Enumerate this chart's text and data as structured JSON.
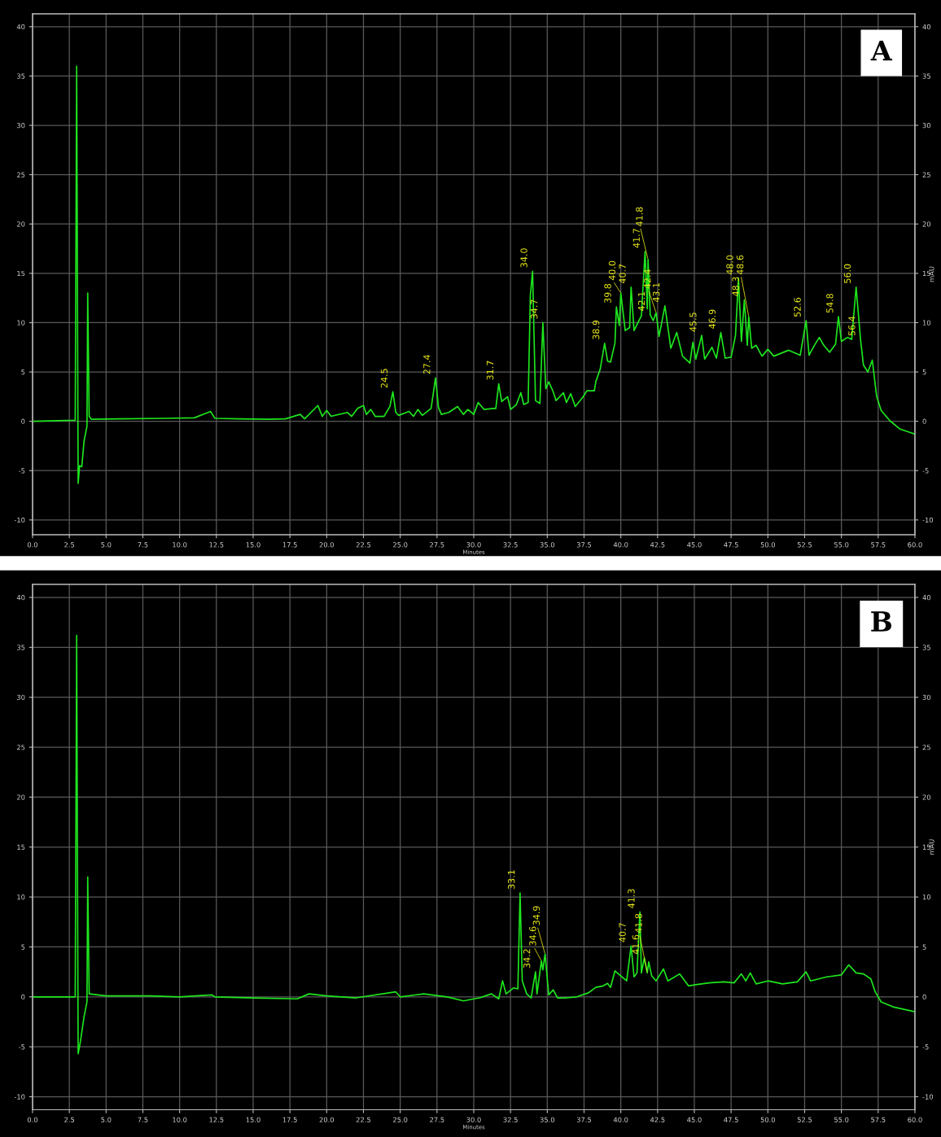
{
  "chart_data": [
    {
      "type": "line",
      "xlabel": "Minutes",
      "y2label": "mAU",
      "xlim": [
        0,
        60
      ],
      "xticks": [
        {
          "value": 0,
          "label": "0.0"
        },
        2.5,
        {
          "value": 5,
          "label": "5.0"
        },
        7.5,
        {
          "value": 10,
          "label": "10.0"
        },
        12.5,
        {
          "value": 15,
          "label": "15.0"
        },
        17.5,
        {
          "value": 20,
          "label": "20.0"
        },
        22.5,
        {
          "value": 25,
          "label": "25.0"
        },
        27.5,
        {
          "value": 30,
          "label": "30.0"
        },
        32.5,
        {
          "value": 35,
          "label": "35.0"
        },
        37.5,
        {
          "value": 40,
          "label": "40.0"
        },
        42.5,
        {
          "value": 45,
          "label": "45.0"
        },
        47.5,
        {
          "value": 50,
          "label": "50.0"
        },
        52.5,
        {
          "value": 55,
          "label": "55.0"
        },
        57.5,
        {
          "value": 60,
          "label": "60.0"
        }
      ],
      "ylim": [
        -11.5,
        41.3
      ],
      "yticks": [
        -10,
        -5,
        0,
        5,
        10,
        15,
        20,
        25,
        30,
        35,
        40
      ],
      "y2lim": [
        -11.5,
        41.3
      ],
      "y2ticks": [
        -10,
        -5,
        0,
        5,
        10,
        15,
        20,
        25,
        30,
        35,
        40
      ],
      "grid": true,
      "legend": false,
      "series": [
        {
          "color": "#1ee61e",
          "x": [
            0,
            2.9,
            3.0,
            3.1,
            3.2,
            3.35,
            3.5,
            3.7,
            3.75,
            3.85,
            4,
            6,
            9,
            11,
            12.1,
            12.4,
            14,
            16,
            17.2,
            18.2,
            18.5,
            19.4,
            19.7,
            20.0,
            20.3,
            21.4,
            21.7,
            22.1,
            22.5,
            22.7,
            23.0,
            23.3,
            23.9,
            24.3,
            24.5,
            24.7,
            24.9,
            25.6,
            25.9,
            26.2,
            26.5,
            27.1,
            27.4,
            27.6,
            27.8,
            28.3,
            28.9,
            29.3,
            29.6,
            30.0,
            30.3,
            30.7,
            31.3,
            31.5,
            31.7,
            31.9,
            32.3,
            32.5,
            32.9,
            33.2,
            33.4,
            33.7,
            33.85,
            34.0,
            34.2,
            34.5,
            34.7,
            34.9,
            35.1,
            35.4,
            35.6,
            36.1,
            36.3,
            36.6,
            36.9,
            37.4,
            37.7,
            38.2,
            38.3,
            38.6,
            38.9,
            39.1,
            39.3,
            39.6,
            39.7,
            39.9,
            40.0,
            40.3,
            40.6,
            40.7,
            40.9,
            41.4,
            41.65,
            41.8,
            41.85,
            42.0,
            42.2,
            42.4,
            42.6,
            43.0,
            43.4,
            43.8,
            44.2,
            44.7,
            44.9,
            45.1,
            45.5,
            45.7,
            46.2,
            46.5,
            46.8,
            47.1,
            47.5,
            47.8,
            48.0,
            48.2,
            48.4,
            48.6,
            48.7,
            48.9,
            49.2,
            49.6,
            50.0,
            50.4,
            51.4,
            52.2,
            52.6,
            52.8,
            53.2,
            53.5,
            53.8,
            54.2,
            54.6,
            54.8,
            55.0,
            55.4,
            55.7,
            56.0,
            56.3,
            56.5,
            56.8,
            57.1,
            57.4,
            57.7,
            58.3,
            59.0,
            60.0
          ],
          "values": [
            0,
            0.1,
            36,
            -6.3,
            -4.5,
            -4.6,
            -2,
            -0.5,
            13,
            0.5,
            0.2,
            0.25,
            0.3,
            0.35,
            1.0,
            0.3,
            0.25,
            0.2,
            0.25,
            0.7,
            0.25,
            1.6,
            0.5,
            1.1,
            0.5,
            0.9,
            0.5,
            1.3,
            1.6,
            0.7,
            1.2,
            0.5,
            0.5,
            1.5,
            3.0,
            0.9,
            0.6,
            1.0,
            0.5,
            1.2,
            0.6,
            1.3,
            4.4,
            1.4,
            0.7,
            0.9,
            1.5,
            0.7,
            1.2,
            0.7,
            1.9,
            1.2,
            1.3,
            1.3,
            3.8,
            2.0,
            2.5,
            1.2,
            1.7,
            2.9,
            1.7,
            1.9,
            12.8,
            15.2,
            2.1,
            1.8,
            10.0,
            3.3,
            4.0,
            3.0,
            2.1,
            2.9,
            1.9,
            2.8,
            1.5,
            2.4,
            3.1,
            3.1,
            4.0,
            5.3,
            7.9,
            6.1,
            6.0,
            7.9,
            11.6,
            9.7,
            13.0,
            9.2,
            9.5,
            13.6,
            9.2,
            10.7,
            17.2,
            11.4,
            16.4,
            10.8,
            10.2,
            11.0,
            8.6,
            11.7,
            7.4,
            9.0,
            6.6,
            5.9,
            8.0,
            6.3,
            8.7,
            6.3,
            7.5,
            6.4,
            9.0,
            6.4,
            6.5,
            8.7,
            14.5,
            8.1,
            12.3,
            7.7,
            10.6,
            7.4,
            7.7,
            6.6,
            7.3,
            6.6,
            7.2,
            6.7,
            10.2,
            6.7,
            7.8,
            8.5,
            7.7,
            7.0,
            7.8,
            10.6,
            8.1,
            8.5,
            8.3,
            13.6,
            8.3,
            5.7,
            5.0,
            6.2,
            2.5,
            1.1,
            0.05,
            -0.8,
            -1.3
          ]
        }
      ],
      "annotations": [
        "A",
        {
          "text": "24.5",
          "x": 24.5,
          "y": 3.0
        },
        {
          "text": "27.4",
          "x": 27.4,
          "y": 4.4
        },
        {
          "text": "31.7",
          "x": 31.7,
          "y": 3.8
        },
        {
          "text": "34.0",
          "x": 34.0,
          "y": 15.2
        },
        {
          "text": "34.7",
          "x": 34.7,
          "y": 10.0
        },
        {
          "text": "38.9",
          "x": 38.9,
          "y": 7.9
        },
        {
          "text": "39.8",
          "x": 39.7,
          "y": 11.6
        },
        {
          "text": "40.0",
          "x": 40.0,
          "y": 13.0
        },
        {
          "text": "40.7",
          "x": 40.7,
          "y": 13.6
        },
        {
          "text": "41.7",
          "x": 41.65,
          "y": 17.2
        },
        {
          "text": "41.8",
          "x": 41.85,
          "y": 16.4
        },
        {
          "text": "42.1",
          "x": 42.0,
          "y": 10.8
        },
        {
          "text": "42.4",
          "x": 42.4,
          "y": 11.0
        },
        {
          "text": "43.1",
          "x": 43.0,
          "y": 11.7
        },
        {
          "text": "45.5",
          "x": 45.5,
          "y": 8.7
        },
        {
          "text": "46.9",
          "x": 46.8,
          "y": 9.0
        },
        {
          "text": "48.0",
          "x": 48.0,
          "y": 14.5
        },
        {
          "text": "48.3",
          "x": 48.4,
          "y": 12.3
        },
        {
          "text": "48.6",
          "x": 48.7,
          "y": 10.6
        },
        {
          "text": "52.6",
          "x": 52.6,
          "y": 10.2
        },
        {
          "text": "54.8",
          "x": 54.8,
          "y": 10.6
        },
        {
          "text": "56.0",
          "x": 56.0,
          "y": 13.6
        },
        {
          "text": "56.4",
          "x": 56.3,
          "y": 8.3
        }
      ]
    },
    {
      "type": "line",
      "xlabel": "Minutes",
      "y2label": "mAU",
      "xlim": [
        0,
        60
      ],
      "xticks": [
        {
          "value": 0,
          "label": "0.0"
        },
        2.5,
        {
          "value": 5,
          "label": "5.0"
        },
        7.5,
        {
          "value": 10,
          "label": "10.0"
        },
        12.5,
        {
          "value": 15,
          "label": "15.0"
        },
        17.5,
        {
          "value": 20,
          "label": "20.0"
        },
        22.5,
        {
          "value": 25,
          "label": "25.0"
        },
        27.5,
        {
          "value": 30,
          "label": "30.0"
        },
        32.5,
        {
          "value": 35,
          "label": "35.0"
        },
        37.5,
        {
          "value": 40,
          "label": "40.0"
        },
        42.5,
        {
          "value": 45,
          "label": "45.0"
        },
        47.5,
        {
          "value": 50,
          "label": "50.0"
        },
        52.5,
        {
          "value": 55,
          "label": "55.0"
        },
        57.5,
        {
          "value": 60,
          "label": "60.0"
        }
      ],
      "ylim": [
        -11.3,
        41.3
      ],
      "yticks": [
        -10,
        -5,
        0,
        5,
        10,
        15,
        20,
        25,
        30,
        35,
        40
      ],
      "y2lim": [
        -11.3,
        41.3
      ],
      "y2ticks": [
        -10,
        -5,
        0,
        5,
        10,
        15,
        20,
        25,
        30,
        35,
        40
      ],
      "grid": true,
      "legend": false,
      "series": [
        {
          "color": "#1ee61e",
          "x": [
            0,
            2.9,
            3.0,
            3.1,
            3.25,
            3.5,
            3.7,
            3.75,
            3.85,
            5,
            8,
            10,
            12.2,
            12.4,
            15,
            18,
            18.8,
            20,
            22,
            24.7,
            25,
            26.6,
            28.2,
            29.3,
            30.4,
            31.2,
            31.7,
            31.96,
            32.2,
            32.7,
            33.0,
            33.15,
            33.3,
            33.6,
            33.9,
            34.2,
            34.3,
            34.6,
            34.7,
            34.85,
            35.1,
            35.4,
            35.7,
            36.3,
            37.0,
            37.8,
            38.3,
            38.8,
            39.1,
            39.3,
            39.6,
            40.0,
            40.4,
            40.7,
            40.9,
            41.1,
            41.3,
            41.4,
            41.6,
            41.8,
            41.9,
            42.1,
            42.4,
            42.9,
            43.2,
            44.0,
            44.6,
            45,
            46,
            47,
            47.7,
            48.2,
            48.5,
            48.8,
            49.2,
            50,
            51,
            52,
            52.6,
            52.9,
            54,
            55,
            55.5,
            56,
            56.5,
            57.0,
            57.3,
            57.7,
            58.5,
            60
          ],
          "values": [
            0,
            0,
            36.2,
            -5.7,
            -4.5,
            -2,
            -0.5,
            12,
            0.3,
            0.1,
            0.1,
            0.0,
            0.2,
            0,
            -0.1,
            -0.2,
            0.3,
            0.1,
            -0.1,
            0.5,
            0,
            0.3,
            0,
            -0.4,
            -0.1,
            0.3,
            -0.2,
            1.6,
            0.3,
            0.9,
            0.8,
            10.4,
            1.6,
            0.3,
            -0.1,
            2.5,
            0.3,
            3.6,
            2.7,
            4.3,
            0.2,
            0.7,
            -0.1,
            -0.1,
            0,
            0.4,
            0.95,
            1.1,
            1.35,
            0.95,
            2.6,
            2.1,
            1.6,
            5.1,
            2.0,
            2.4,
            8.5,
            2.4,
            3.9,
            2.4,
            3.5,
            2.1,
            1.6,
            2.8,
            1.6,
            2.3,
            1.1,
            1.2,
            1.4,
            1.5,
            1.4,
            2.3,
            1.6,
            2.4,
            1.3,
            1.6,
            1.3,
            1.5,
            2.5,
            1.6,
            2.0,
            2.2,
            3.2,
            2.4,
            2.3,
            1.8,
            0.5,
            -0.5,
            -1.0,
            -1.5
          ]
        }
      ],
      "annotations": [
        "B",
        {
          "text": "33.1",
          "x": 33.15,
          "y": 10.4
        },
        {
          "text": "34.2",
          "x": 34.2,
          "y": 2.5
        },
        {
          "text": "34.6",
          "x": 34.6,
          "y": 3.6
        },
        {
          "text": "34.9",
          "x": 34.85,
          "y": 4.3
        },
        {
          "text": "40.7",
          "x": 40.7,
          "y": 5.1
        },
        {
          "text": "41.3",
          "x": 41.3,
          "y": 8.5
        },
        {
          "text": "41.6",
          "x": 41.6,
          "y": 3.9
        },
        {
          "text": "41.8",
          "x": 41.8,
          "y": 2.4
        }
      ]
    }
  ]
}
